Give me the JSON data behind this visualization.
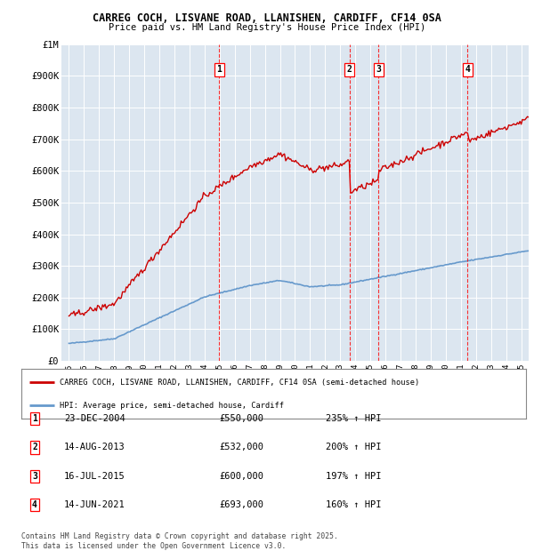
{
  "title_line1": "CARREG COCH, LISVANE ROAD, LLANISHEN, CARDIFF, CF14 0SA",
  "title_line2": "Price paid vs. HM Land Registry's House Price Index (HPI)",
  "plot_bg_color": "#dce6f0",
  "hpi_color": "#6699cc",
  "price_color": "#cc0000",
  "ylim": [
    0,
    1000000
  ],
  "yticks": [
    0,
    100000,
    200000,
    300000,
    400000,
    500000,
    600000,
    700000,
    800000,
    900000,
    1000000
  ],
  "ytick_labels": [
    "£0",
    "£100K",
    "£200K",
    "£300K",
    "£400K",
    "£500K",
    "£600K",
    "£700K",
    "£800K",
    "£900K",
    "£1M"
  ],
  "xmin": 1994.5,
  "xmax": 2025.5,
  "transactions": [
    {
      "label": "1",
      "date": "23-DEC-2004",
      "year": 2004.97,
      "price": 550000,
      "hpi_pct": "235%"
    },
    {
      "label": "2",
      "date": "14-AUG-2013",
      "year": 2013.62,
      "price": 532000,
      "hpi_pct": "200%"
    },
    {
      "label": "3",
      "date": "16-JUL-2015",
      "year": 2015.54,
      "price": 600000,
      "hpi_pct": "197%"
    },
    {
      "label": "4",
      "date": "14-JUN-2021",
      "year": 2021.45,
      "price": 693000,
      "hpi_pct": "160%"
    }
  ],
  "legend_line1": "CARREG COCH, LISVANE ROAD, LLANISHEN, CARDIFF, CF14 0SA (semi-detached house)",
  "legend_line2": "HPI: Average price, semi-detached house, Cardiff",
  "footer": "Contains HM Land Registry data © Crown copyright and database right 2025.\nThis data is licensed under the Open Government Licence v3.0."
}
